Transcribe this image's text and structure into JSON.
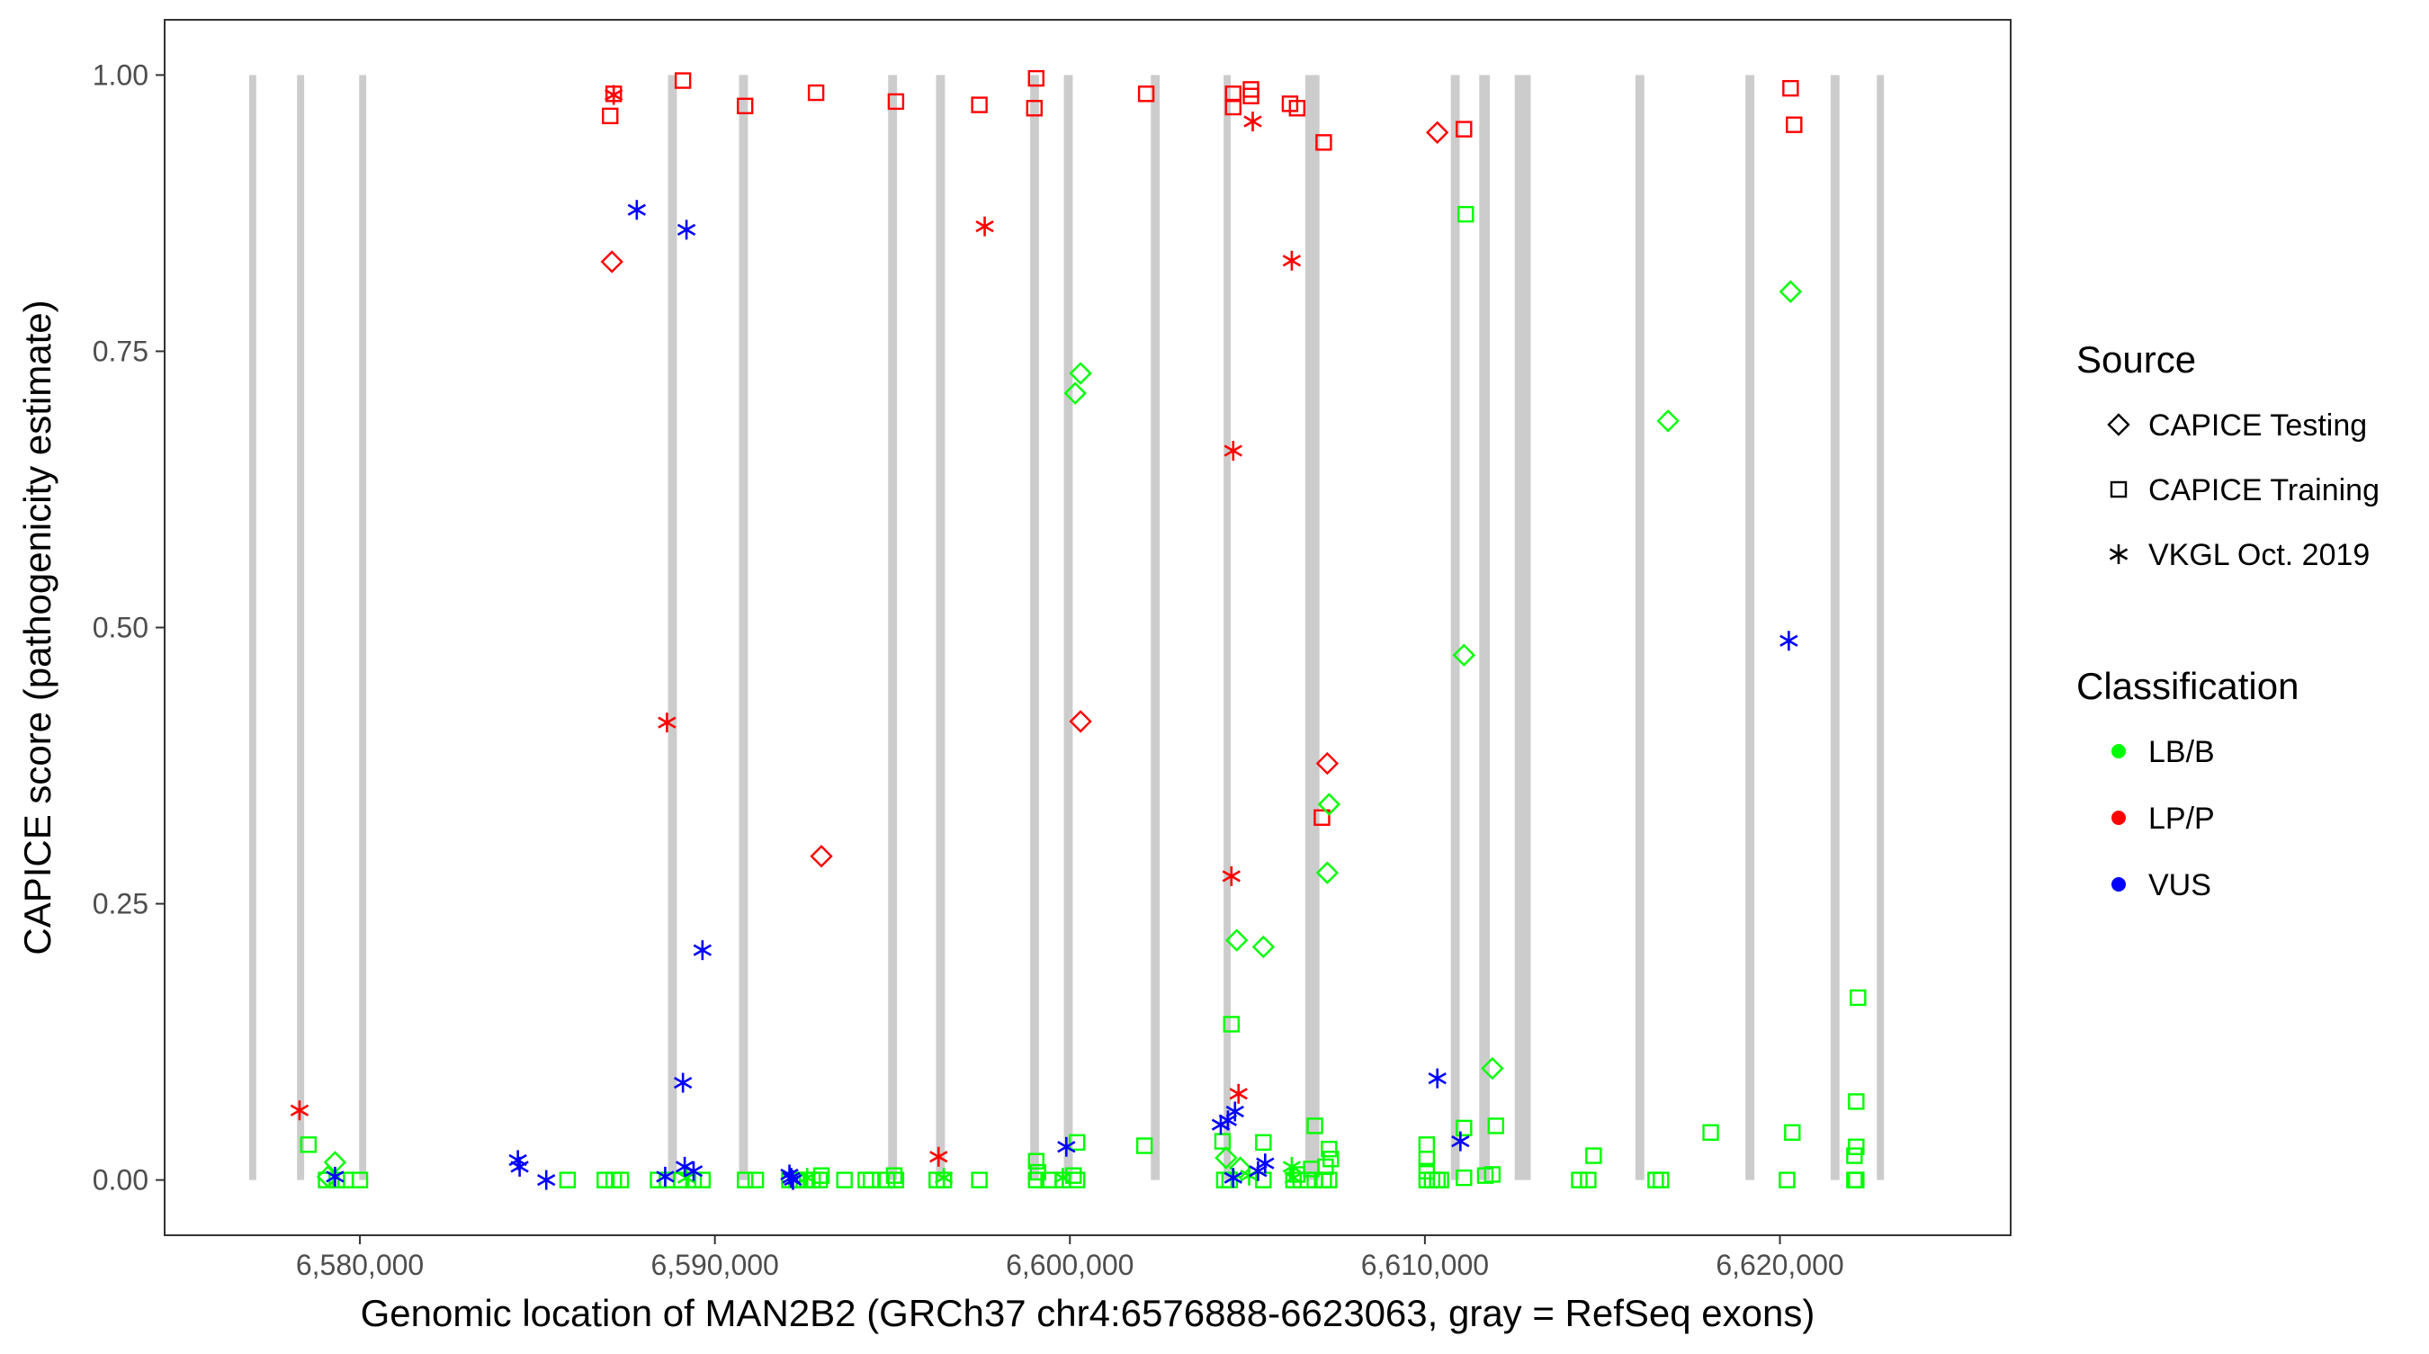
{
  "chart_data": {
    "type": "scatter",
    "xlabel": "Genomic location of MAN2B2 (GRCh37 chr4:6576888-6623063, gray = RefSeq exons)",
    "ylabel": "CAPICE score (pathogenicity estimate)",
    "xlim": [
      6574500,
      6626500
    ],
    "ylim": [
      -0.05,
      1.05
    ],
    "x_ticks": [
      6580000,
      6590000,
      6600000,
      6610000,
      6620000
    ],
    "x_tick_labels": [
      "6,580,000",
      "6,590,000",
      "6,600,000",
      "6,610,000",
      "6,620,000"
    ],
    "y_ticks": [
      0,
      0.25,
      0.5,
      0.75,
      1.0
    ],
    "y_tick_labels": [
      "0.00",
      "0.25",
      "0.50",
      "0.75",
      "1.00"
    ],
    "grid": false,
    "exons": [
      {
        "start": 6576880,
        "end": 6577080
      },
      {
        "start": 6578230,
        "end": 6578430
      },
      {
        "start": 6579980,
        "end": 6580180
      },
      {
        "start": 6588680,
        "end": 6588930
      },
      {
        "start": 6590680,
        "end": 6590930
      },
      {
        "start": 6594880,
        "end": 6595130
      },
      {
        "start": 6596230,
        "end": 6596480
      },
      {
        "start": 6598880,
        "end": 6599130
      },
      {
        "start": 6599830,
        "end": 6600080
      },
      {
        "start": 6602280,
        "end": 6602530
      },
      {
        "start": 6604330,
        "end": 6604530
      },
      {
        "start": 6606630,
        "end": 6607030
      },
      {
        "start": 6610730,
        "end": 6610980
      },
      {
        "start": 6611530,
        "end": 6611830
      },
      {
        "start": 6612530,
        "end": 6612980
      },
      {
        "start": 6615930,
        "end": 6616180
      },
      {
        "start": 6619030,
        "end": 6619280
      },
      {
        "start": 6621430,
        "end": 6621680
      },
      {
        "start": 6622730,
        "end": 6622930
      }
    ],
    "legend": {
      "position": "right",
      "source_title": "Source",
      "source_items": [
        {
          "label": "CAPICE Testing",
          "shape": "diamond"
        },
        {
          "label": "CAPICE Training",
          "shape": "square"
        },
        {
          "label": "VKGL Oct. 2019",
          "shape": "asterisk"
        }
      ],
      "class_title": "Classification",
      "class_items": [
        {
          "label": "LB/B",
          "color": "#00ff00"
        },
        {
          "label": "LP/P",
          "color": "#ff0000"
        },
        {
          "label": "VUS",
          "color": "#0000ff"
        }
      ]
    },
    "series": [
      {
        "shape": "square",
        "class": "LP/P",
        "points": [
          [
            6587150,
            0.983
          ],
          [
            6587050,
            0.963
          ],
          [
            6589100,
            0.995
          ],
          [
            6590850,
            0.972
          ],
          [
            6592850,
            0.984
          ],
          [
            6595100,
            0.976
          ],
          [
            6597450,
            0.973
          ],
          [
            6599050,
            0.997
          ],
          [
            6599000,
            0.97
          ],
          [
            6602150,
            0.983
          ],
          [
            6604600,
            0.983
          ],
          [
            6604600,
            0.971
          ],
          [
            6605100,
            0.987
          ],
          [
            6605100,
            0.981
          ],
          [
            6606200,
            0.974
          ],
          [
            6606400,
            0.97
          ],
          [
            6607150,
            0.939
          ],
          [
            6607100,
            0.328
          ],
          [
            6611100,
            0.951
          ],
          [
            6620300,
            0.988
          ],
          [
            6620400,
            0.955
          ]
        ]
      },
      {
        "shape": "diamond",
        "class": "LP/P",
        "points": [
          [
            6587100,
            0.831
          ],
          [
            6593000,
            0.293
          ],
          [
            6600300,
            0.415
          ],
          [
            6610350,
            0.948
          ],
          [
            6607250,
            0.377
          ]
        ]
      },
      {
        "shape": "asterisk",
        "class": "LP/P",
        "points": [
          [
            6587150,
            0.982
          ],
          [
            6578300,
            0.063
          ],
          [
            6588650,
            0.414
          ],
          [
            6597600,
            0.863
          ],
          [
            6596300,
            0.021
          ],
          [
            6604600,
            0.66
          ],
          [
            6604550,
            0.275
          ],
          [
            6604750,
            0.078
          ],
          [
            6605150,
            0.958
          ],
          [
            6606250,
            0.832
          ]
        ]
      },
      {
        "shape": "diamond",
        "class": "LB/B",
        "points": [
          [
            6579300,
            0.016
          ],
          [
            6579100,
            0.003
          ],
          [
            6600300,
            0.73
          ],
          [
            6600150,
            0.712
          ],
          [
            6604700,
            0.217
          ],
          [
            6605450,
            0.211
          ],
          [
            6607300,
            0.34
          ],
          [
            6607250,
            0.278
          ],
          [
            6611100,
            0.475
          ],
          [
            6611900,
            0.101
          ],
          [
            6616850,
            0.687
          ],
          [
            6620300,
            0.804
          ],
          [
            6604800,
            0.011
          ],
          [
            6604400,
            0.02
          ]
        ]
      },
      {
        "shape": "square",
        "class": "LB/B",
        "points": [
          [
            6611150,
            0.874
          ],
          [
            6604550,
            0.141
          ],
          [
            6622200,
            0.165
          ],
          [
            6622150,
            0.071
          ],
          [
            6622150,
            0.03
          ],
          [
            6622100,
            0.022
          ],
          [
            6622150,
            0.0
          ],
          [
            6622100,
            0.0
          ],
          [
            6620350,
            0.043
          ],
          [
            6620200,
            0.0
          ],
          [
            6618050,
            0.043
          ],
          [
            6616650,
            0.0
          ],
          [
            6616500,
            0.0
          ],
          [
            6614750,
            0.022
          ],
          [
            6614600,
            0.0
          ],
          [
            6614350,
            0.0
          ],
          [
            6612000,
            0.049
          ],
          [
            6611900,
            0.005
          ],
          [
            6611700,
            0.004
          ],
          [
            6611100,
            0.047
          ],
          [
            6611100,
            0.002
          ],
          [
            6610050,
            0.032
          ],
          [
            6610050,
            0.019
          ],
          [
            6610050,
            0.008
          ],
          [
            6610050,
            0.0
          ],
          [
            6610200,
            0.0
          ],
          [
            6610350,
            0.0
          ],
          [
            6610450,
            0.0
          ],
          [
            6606900,
            0.049
          ],
          [
            6607300,
            0.028
          ],
          [
            6607350,
            0.019
          ],
          [
            6607200,
            0.012
          ],
          [
            6606800,
            0.01
          ],
          [
            6606400,
            0.005
          ],
          [
            6606300,
            0.0
          ],
          [
            6606700,
            0.0
          ],
          [
            6606900,
            0.0
          ],
          [
            6607150,
            0.0
          ],
          [
            6607300,
            0.0
          ],
          [
            6605450,
            0.034
          ],
          [
            6605450,
            0.0
          ],
          [
            6604300,
            0.035
          ],
          [
            6604350,
            0.0
          ],
          [
            6604500,
            0.0
          ],
          [
            6602100,
            0.031
          ],
          [
            6600200,
            0.034
          ],
          [
            6599050,
            0.017
          ],
          [
            6599100,
            0.007
          ],
          [
            6599050,
            0.0
          ],
          [
            6599400,
            0.0
          ],
          [
            6599800,
            0.0
          ],
          [
            6600100,
            0.004
          ],
          [
            6600200,
            0.0
          ],
          [
            6597450,
            0.0
          ],
          [
            6596450,
            0.0
          ],
          [
            6596250,
            0.0
          ],
          [
            6595050,
            0.004
          ],
          [
            6595100,
            0.0
          ],
          [
            6594850,
            0.0
          ],
          [
            6594400,
            0.0
          ],
          [
            6594250,
            0.0
          ],
          [
            6593650,
            0.0
          ],
          [
            6593000,
            0.004
          ],
          [
            6592950,
            0.0
          ],
          [
            6592750,
            0.0
          ],
          [
            6592600,
            0.0
          ],
          [
            6592300,
            0.0
          ],
          [
            6592100,
            0.0
          ],
          [
            6591150,
            0.0
          ],
          [
            6590850,
            0.0
          ],
          [
            6589650,
            0.0
          ],
          [
            6589400,
            0.0
          ],
          [
            6589050,
            0.0
          ],
          [
            6588650,
            0.0
          ],
          [
            6588400,
            0.0
          ],
          [
            6587350,
            0.0
          ],
          [
            6587150,
            0.0
          ],
          [
            6586900,
            0.0
          ],
          [
            6585850,
            0.0
          ],
          [
            6579050,
            0.0
          ],
          [
            6579350,
            0.0
          ],
          [
            6579600,
            0.0
          ],
          [
            6580000,
            0.0
          ],
          [
            6578550,
            0.032
          ]
        ]
      },
      {
        "shape": "asterisk",
        "class": "LB/B",
        "points": [
          [
            6606250,
            0.012
          ],
          [
            6606300,
            0.002
          ],
          [
            6605050,
            0.004
          ],
          [
            6589200,
            0.002
          ],
          [
            6592600,
            0.002
          ],
          [
            6596450,
            0.002
          ],
          [
            6599800,
            0.002
          ],
          [
            6604600,
            0.002
          ]
        ]
      },
      {
        "shape": "asterisk",
        "class": "VUS",
        "points": [
          [
            6587800,
            0.878
          ],
          [
            6589200,
            0.86
          ],
          [
            6589650,
            0.208
          ],
          [
            6589100,
            0.088
          ],
          [
            6589150,
            0.012
          ],
          [
            6589400,
            0.008
          ],
          [
            6588600,
            0.003
          ],
          [
            6584450,
            0.018
          ],
          [
            6584500,
            0.012
          ],
          [
            6585250,
            0.0
          ],
          [
            6579300,
            0.003
          ],
          [
            6592100,
            0.005
          ],
          [
            6592150,
            0.002
          ],
          [
            6592200,
            0.0
          ],
          [
            6599900,
            0.03
          ],
          [
            6604250,
            0.05
          ],
          [
            6604450,
            0.054
          ],
          [
            6604650,
            0.062
          ],
          [
            6604600,
            0.002
          ],
          [
            6605300,
            0.008
          ],
          [
            6605500,
            0.015
          ],
          [
            6610350,
            0.092
          ],
          [
            6611000,
            0.035
          ],
          [
            6620250,
            0.488
          ]
        ]
      }
    ]
  }
}
